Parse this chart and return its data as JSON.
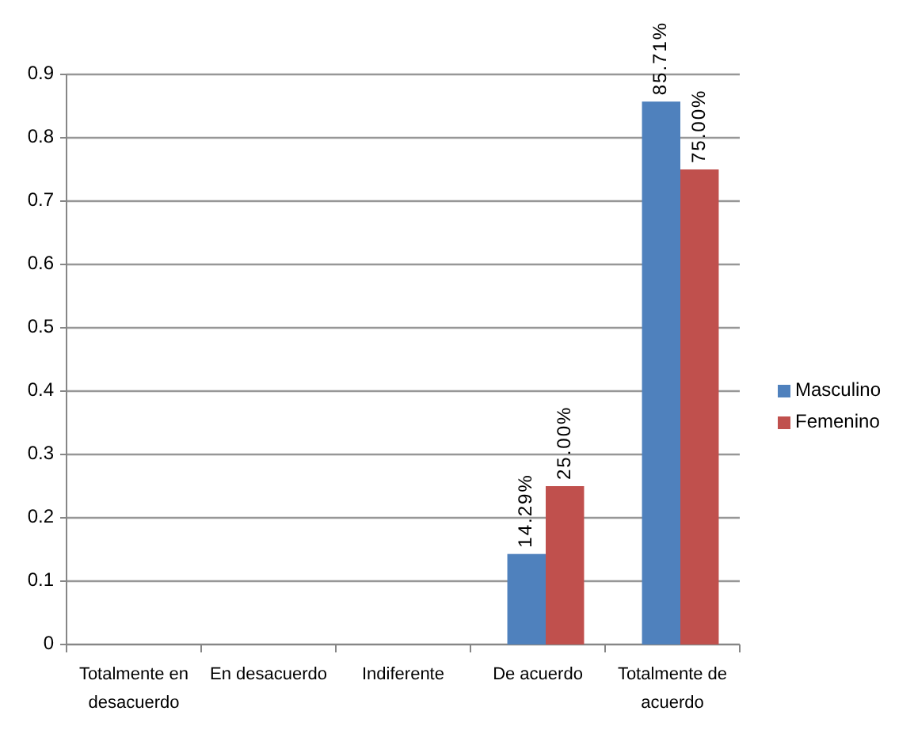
{
  "chart_data": {
    "type": "bar",
    "categories": [
      "Totalmente en desacuerdo",
      "En desacuerdo",
      "Indiferente",
      "De acuerdo",
      "Totalmente de acuerdo"
    ],
    "series": [
      {
        "name": "Masculino",
        "color": "#4f81bd",
        "values": [
          0,
          0,
          0,
          0.1429,
          0.8571
        ],
        "value_labels": [
          null,
          null,
          null,
          "14.29%",
          "85.71%"
        ]
      },
      {
        "name": "Femenino",
        "color": "#c0504d",
        "values": [
          0,
          0,
          0,
          0.25,
          0.75
        ],
        "value_labels": [
          null,
          null,
          null,
          "25.00%",
          "75.00%"
        ]
      }
    ],
    "ylim": [
      0,
      0.9
    ],
    "yticks": [
      0,
      0.1,
      0.2,
      0.3,
      0.4,
      0.5,
      0.6,
      0.7,
      0.8,
      0.9
    ],
    "grid": "y",
    "legend": "right"
  }
}
